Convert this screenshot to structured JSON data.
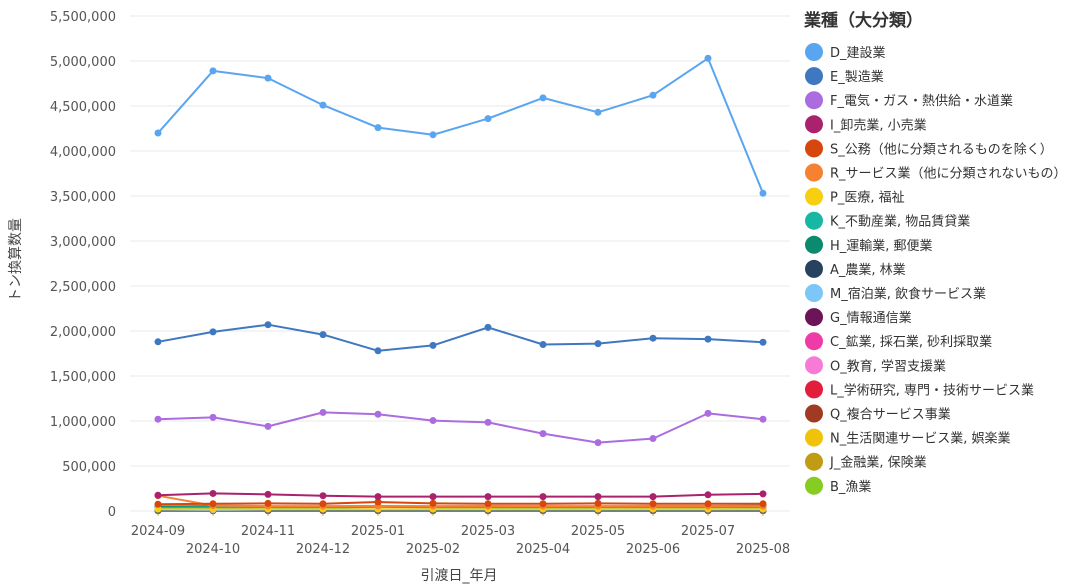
{
  "chart_data": {
    "type": "line",
    "xlabel": "引渡日_年月",
    "ylabel": "トン換算数量",
    "ylim": [
      0,
      5500000
    ],
    "yticks": [
      0,
      500000,
      1000000,
      1500000,
      2000000,
      2500000,
      3000000,
      3500000,
      4000000,
      4500000,
      5000000,
      5500000
    ],
    "ytick_labels": [
      "0",
      "500,000",
      "1,000,000",
      "1,500,000",
      "2,000,000",
      "2,500,000",
      "3,000,000",
      "3,500,000",
      "4,000,000",
      "4,500,000",
      "5,000,000",
      "5,500,000"
    ],
    "categories": [
      "2024-09",
      "2024-10",
      "2024-11",
      "2024-12",
      "2025-01",
      "2025-02",
      "2025-03",
      "2025-04",
      "2025-05",
      "2025-06",
      "2025-07",
      "2025-08"
    ],
    "grid": true,
    "legend": {
      "title": "業種（大分類）",
      "position": "right"
    },
    "series": [
      {
        "name": "D_建設業",
        "color": "#5aa5f0",
        "values": [
          4200000,
          4890000,
          4810000,
          4510000,
          4260000,
          4180000,
          4360000,
          4590000,
          4430000,
          4620000,
          5030000,
          3530000
        ]
      },
      {
        "name": "E_製造業",
        "color": "#3f78c0",
        "values": [
          1880000,
          1990000,
          2070000,
          1960000,
          1780000,
          1840000,
          2040000,
          1850000,
          1860000,
          1920000,
          1910000,
          1875000
        ]
      },
      {
        "name": "F_電気・ガス・熱供給・水道業",
        "color": "#ab6cdf",
        "values": [
          1020000,
          1040000,
          940000,
          1095000,
          1075000,
          1005000,
          985000,
          860000,
          760000,
          805000,
          1085000,
          1020000
        ]
      },
      {
        "name": "I_卸売業, 小売業",
        "color": "#a9226b",
        "values": [
          175000,
          195000,
          185000,
          170000,
          160000,
          160000,
          160000,
          160000,
          160000,
          160000,
          180000,
          190000
        ]
      },
      {
        "name": "S_公務（他に分類されるものを除く）",
        "color": "#d6460d",
        "values": [
          75000,
          80000,
          85000,
          80000,
          100000,
          85000,
          80000,
          80000,
          85000,
          80000,
          80000,
          80000
        ]
      },
      {
        "name": "R_サービス業（他に分類されないもの）",
        "color": "#f58232",
        "values": [
          170000,
          60000,
          55000,
          55000,
          55000,
          55000,
          55000,
          55000,
          55000,
          55000,
          55000,
          55000
        ]
      },
      {
        "name": "P_医療, 福祉",
        "color": "#f6cf10",
        "values": [
          20000,
          20000,
          20000,
          20000,
          20000,
          20000,
          20000,
          20000,
          20000,
          20000,
          20000,
          20000
        ]
      },
      {
        "name": "K_不動産業, 物品賃貸業",
        "color": "#17b7a3",
        "values": [
          35000,
          40000,
          40000,
          35000,
          45000,
          40000,
          40000,
          35000,
          40000,
          40000,
          40000,
          40000
        ]
      },
      {
        "name": "H_運輸業, 郵便業",
        "color": "#0b8a6e",
        "values": [
          50000,
          55000,
          50000,
          50000,
          55000,
          50000,
          55000,
          50000,
          50000,
          55000,
          55000,
          60000
        ]
      },
      {
        "name": "A_農業, 林業",
        "color": "#27425f",
        "values": [
          15000,
          25000,
          15000,
          15000,
          15000,
          15000,
          15000,
          15000,
          15000,
          15000,
          15000,
          15000
        ]
      },
      {
        "name": "M_宿泊業, 飲食サービス業",
        "color": "#7cc7f7",
        "values": [
          12000,
          12000,
          12000,
          12000,
          12000,
          12000,
          12000,
          12000,
          12000,
          12000,
          12000,
          12000
        ]
      },
      {
        "name": "G_情報通信業",
        "color": "#6c1458",
        "values": [
          8000,
          8000,
          8000,
          8000,
          8000,
          8000,
          8000,
          8000,
          8000,
          8000,
          8000,
          8000
        ]
      },
      {
        "name": "C_鉱業, 採石業, 砂利採取業",
        "color": "#f03aa8",
        "values": [
          6000,
          6000,
          6000,
          6000,
          6000,
          6000,
          6000,
          6000,
          6000,
          6000,
          6000,
          6000
        ]
      },
      {
        "name": "O_教育, 学習支援業",
        "color": "#f77ad6",
        "values": [
          5000,
          5000,
          5000,
          5000,
          5000,
          5000,
          5000,
          5000,
          5000,
          5000,
          5000,
          5000
        ]
      },
      {
        "name": "L_学術研究, 専門・技術サービス業",
        "color": "#e31d3c",
        "values": [
          10000,
          10000,
          10000,
          10000,
          10000,
          10000,
          10000,
          10000,
          10000,
          10000,
          10000,
          10000
        ]
      },
      {
        "name": "Q_複合サービス事業",
        "color": "#a13a22",
        "values": [
          4000,
          4000,
          4000,
          4000,
          4000,
          4000,
          4000,
          4000,
          4000,
          4000,
          4000,
          4000
        ]
      },
      {
        "name": "N_生活関連サービス業, 娯楽業",
        "color": "#f0c20a",
        "values": [
          9000,
          9000,
          9000,
          9000,
          9000,
          9000,
          9000,
          9000,
          9000,
          9000,
          9000,
          9000
        ]
      },
      {
        "name": "J_金融業, 保険業",
        "color": "#c09c12",
        "values": [
          3000,
          3000,
          3000,
          3000,
          3000,
          3000,
          3000,
          3000,
          3000,
          3000,
          3000,
          3000
        ]
      },
      {
        "name": "B_漁業",
        "color": "#86cc22",
        "values": [
          2000,
          2000,
          2000,
          2000,
          2000,
          2000,
          2000,
          2000,
          2000,
          2000,
          2000,
          2000
        ]
      }
    ]
  }
}
